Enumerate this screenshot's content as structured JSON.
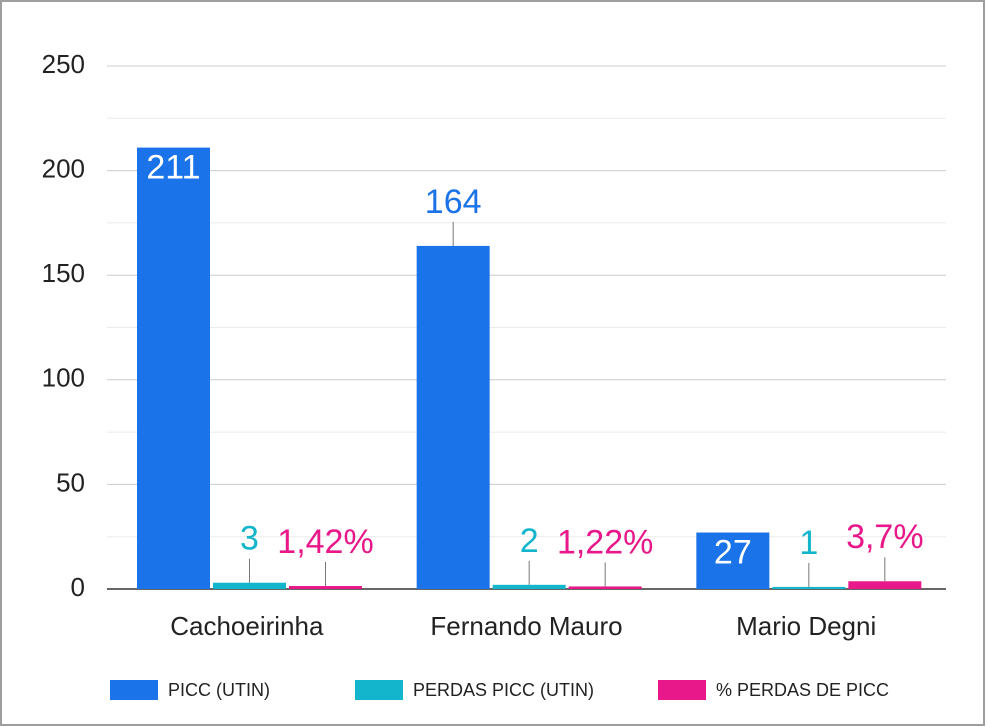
{
  "chart_data": {
    "type": "bar",
    "categories": [
      "Cachoeirinha",
      "Fernando Mauro",
      "Mario Degni"
    ],
    "series": [
      {
        "name": "PICC (UTIN)",
        "color": "#1a73e8",
        "values": [
          211,
          164,
          27
        ]
      },
      {
        "name": "PERDAS PICC (UTIN)",
        "color": "#12b5cb",
        "values": [
          3,
          2,
          1
        ]
      },
      {
        "name": "% PERDAS DE PICC",
        "color": "#e8178a",
        "values": [
          1.42,
          1.22,
          3.7
        ],
        "value_labels": [
          "1,42%",
          "1,22%",
          "3,7%"
        ]
      }
    ],
    "ylim": [
      0,
      250
    ],
    "yticks": [
      0,
      50,
      100,
      150,
      200,
      250
    ],
    "minor_yticks": [
      25,
      75,
      125,
      175,
      225
    ],
    "grid": true,
    "legend": "bottom"
  }
}
